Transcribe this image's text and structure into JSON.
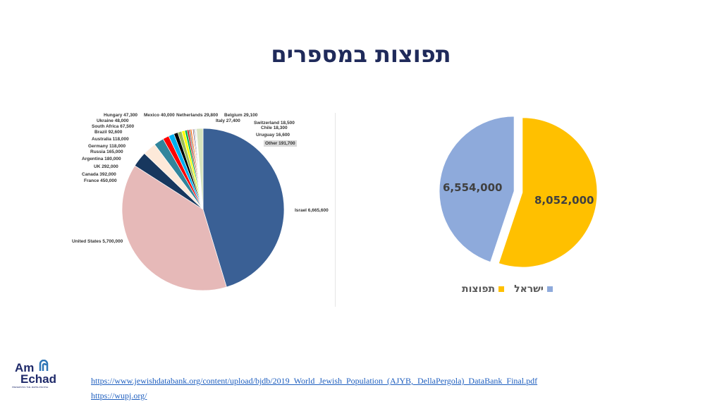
{
  "title": "תפוצות במספרים",
  "chart_data": [
    {
      "type": "pie",
      "start": "top",
      "direction": "clockwise",
      "slices": [
        {
          "label": "Israel",
          "value": 6665600,
          "color": "#3a6095"
        },
        {
          "label": "United States",
          "value": 5700000,
          "color": "#e6b9b8"
        },
        {
          "label": "France",
          "value": 450000,
          "color": "#17375e"
        },
        {
          "label": "Canada",
          "value": 392000,
          "color": "#fde9d9"
        },
        {
          "label": "UK",
          "value": 292000,
          "color": "#31859c"
        },
        {
          "label": "Argentina",
          "value": 180000,
          "color": "#ff0000"
        },
        {
          "label": "Russia",
          "value": 165000,
          "color": "#00b0f0"
        },
        {
          "label": "Germany",
          "value": 118000,
          "color": "#000000"
        },
        {
          "label": "Australia",
          "value": 118000,
          "color": "#9bbb59"
        },
        {
          "label": "Brazil",
          "value": 92600,
          "color": "#ffff00"
        },
        {
          "label": "South Africa",
          "value": 67500,
          "color": "#00b050"
        },
        {
          "label": "Ukraine",
          "value": 48000,
          "color": "#c00000"
        },
        {
          "label": "Hungary",
          "value": 47300,
          "color": "#7f7f7f"
        },
        {
          "label": "Mexico",
          "value": 40000,
          "color": "#ff6600"
        },
        {
          "label": "Netherlands",
          "value": 29800,
          "color": "#f2f2f2"
        },
        {
          "label": "Belgium",
          "value": 29100,
          "color": "#953735"
        },
        {
          "label": "Italy",
          "value": 27400,
          "color": "#4f81bd"
        },
        {
          "label": "Switzerland",
          "value": 18500,
          "color": "#ffc000"
        },
        {
          "label": "Chile",
          "value": 18300,
          "color": "#1f497d"
        },
        {
          "label": "Uruguay",
          "value": 16600,
          "color": "#8064a2"
        },
        {
          "label": "Other",
          "value": 191700,
          "color": "#d7e4bd"
        }
      ],
      "data_labels": [
        "Israel 6,665,600",
        "United States 5,700,000",
        "France 450,000",
        "Canada 392,000",
        "UK 292,000",
        "Argentina 180,000",
        "Russia 165,000",
        "Germany 118,000",
        "Australia 118,000",
        "Brazil 92,600",
        "South Africa 67,500",
        "Ukraine 48,000",
        "Hungary 47,300",
        "Mexico 40,000",
        "Netherlands 29,800",
        "Belgium 29,100",
        "Italy 27,400",
        "Switzerland 18,500",
        "Chile 18,300",
        "Uruguay 16,600",
        "Other 191,700"
      ]
    },
    {
      "type": "pie",
      "start": "top",
      "direction": "clockwise",
      "exploded": true,
      "slices": [
        {
          "label": "תפוצות",
          "value": 8052000,
          "display": "8,052,000",
          "color": "#ffc000"
        },
        {
          "label": "ישראל",
          "value": 6554000,
          "display": "6,554,000",
          "color": "#8eaadb"
        }
      ],
      "legend": "bottom"
    }
  ],
  "links": [
    "https://www.jewishdatabank.org/content/upload/bjdb/2019_World_Jewish_Population_(AJYB,_DellaPergola)_DataBank_Final.pdf",
    "https://wupj.org/"
  ],
  "logo": {
    "text": "Am Echad",
    "tagline": "PRESERVING THE JEWISH PEOPLE"
  }
}
